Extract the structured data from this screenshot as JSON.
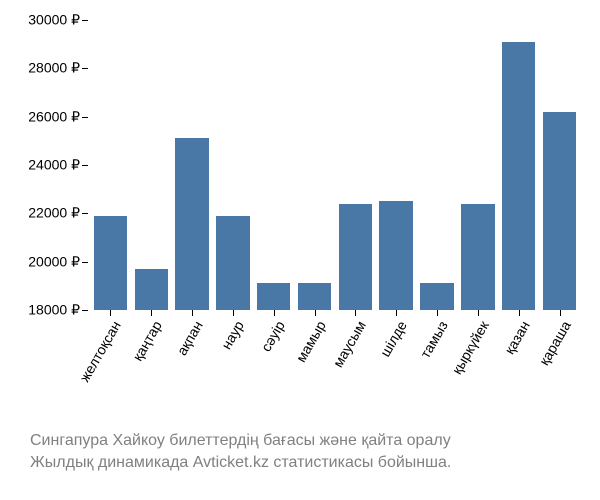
{
  "chart": {
    "type": "bar",
    "categories": [
      "желтоқсан",
      "қаңтар",
      "ақпан",
      "наур",
      "сәуір",
      "мамыр",
      "маусым",
      "шілде",
      "тамыз",
      "қыркүйек",
      "қазан",
      "қараша"
    ],
    "values": [
      21900,
      19700,
      25100,
      21900,
      19100,
      19100,
      22400,
      22500,
      19100,
      22400,
      29100,
      26200
    ],
    "bar_color": "#4a78a6",
    "background_color": "#ffffff",
    "ylim_min": 18000,
    "ylim_max": 30000,
    "ytick_step": 2000,
    "ytick_labels": [
      "18000 ₽",
      "20000 ₽",
      "22000 ₽",
      "24000 ₽",
      "26000 ₽",
      "28000 ₽",
      "30000 ₽"
    ],
    "currency_symbol": "₽",
    "label_fontsize": 14,
    "caption_fontsize": 16,
    "caption_color": "#808080",
    "label_color": "#000000",
    "x_label_rotation": -60,
    "bar_width_ratio": 0.82
  },
  "caption": {
    "line1": "Сингапура Хайкоу билеттердің бағасы және қайта оралу",
    "line2": "Жылдық динамикада Avticket.kz статистикасы бойынша."
  }
}
